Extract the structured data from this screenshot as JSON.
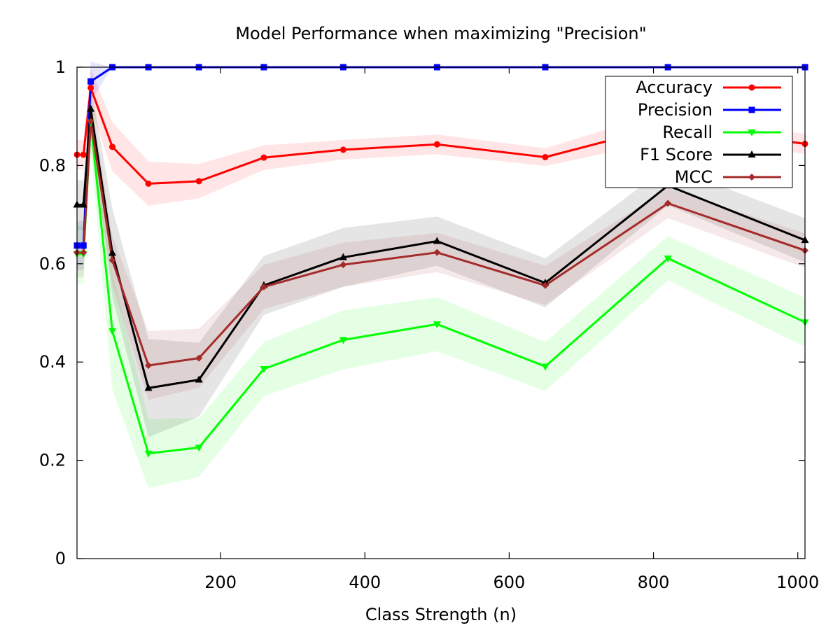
{
  "chart_data": {
    "type": "line",
    "title": "Model Performance when maximizing \"Precision\"",
    "xlabel": "Class Strength (n)",
    "ylabel": "",
    "xlim": [
      1,
      1010
    ],
    "ylim": [
      0,
      1
    ],
    "x_ticks": [
      200,
      400,
      600,
      800,
      1000
    ],
    "y_ticks": [
      0,
      0.2,
      0.4,
      0.6,
      0.8,
      1
    ],
    "y_tick_labels": [
      "0",
      "0.2",
      "0.4",
      "0.6",
      "0.8",
      "1"
    ],
    "grid": false,
    "legend_position": "top-right",
    "x": [
      1,
      10,
      20,
      50,
      100,
      170,
      260,
      370,
      500,
      650,
      820,
      1010
    ],
    "series": [
      {
        "name": "Accuracy",
        "color": "#ff0000",
        "marker": "circle",
        "values": [
          0.822,
          0.822,
          0.958,
          0.838,
          0.763,
          0.768,
          0.816,
          0.832,
          0.843,
          0.817,
          0.882,
          0.844
        ],
        "band": [
          0.03,
          0.03,
          0.04,
          0.05,
          0.045,
          0.035,
          0.025,
          0.02,
          0.02,
          0.018,
          0.03,
          0.02
        ]
      },
      {
        "name": "Precision",
        "color": "#0000ff",
        "marker": "square",
        "values": [
          0.637,
          0.637,
          0.971,
          1.0,
          1.0,
          1.0,
          1.0,
          1.0,
          1.0,
          1.0,
          1.0,
          1.0
        ],
        "band": [
          0.05,
          0.05,
          0.04,
          0.0,
          0.0,
          0.0,
          0.0,
          0.0,
          0.0,
          0.0,
          0.0,
          0.0
        ]
      },
      {
        "name": "Recall",
        "color": "#00ff00",
        "marker": "triangle-down",
        "values": [
          0.62,
          0.62,
          0.888,
          0.463,
          0.214,
          0.226,
          0.386,
          0.445,
          0.477,
          0.391,
          0.611,
          0.481
        ],
        "band": [
          0.06,
          0.06,
          0.06,
          0.12,
          0.07,
          0.06,
          0.055,
          0.06,
          0.055,
          0.05,
          0.045,
          0.05
        ]
      },
      {
        "name": "F1 Score",
        "color": "#000000",
        "marker": "triangle-up",
        "values": [
          0.72,
          0.72,
          0.915,
          0.622,
          0.347,
          0.364,
          0.556,
          0.613,
          0.646,
          0.561,
          0.759,
          0.648
        ],
        "band": [
          0.05,
          0.05,
          0.05,
          0.09,
          0.1,
          0.075,
          0.06,
          0.06,
          0.05,
          0.05,
          0.04,
          0.045
        ]
      },
      {
        "name": "MCC",
        "color": "#a52a2a",
        "marker": "diamond",
        "values": [
          0.623,
          0.623,
          0.89,
          0.607,
          0.393,
          0.408,
          0.553,
          0.598,
          0.623,
          0.556,
          0.723,
          0.627
        ],
        "band": [
          0.05,
          0.05,
          0.05,
          0.05,
          0.07,
          0.06,
          0.045,
          0.045,
          0.04,
          0.04,
          0.03,
          0.035
        ]
      }
    ]
  }
}
